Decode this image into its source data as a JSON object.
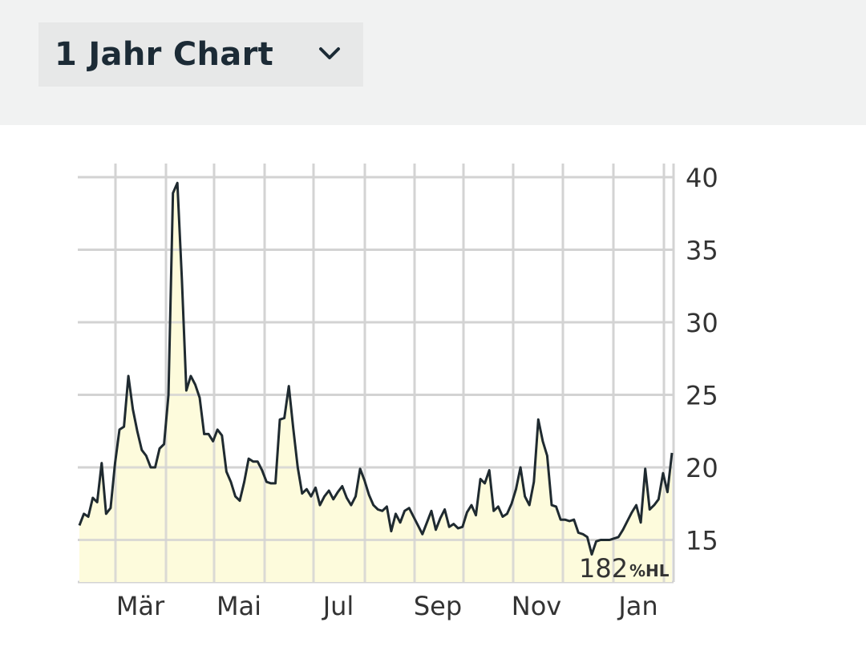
{
  "header": {
    "dropdown_label": "1 Jahr Chart",
    "dropdown_icon": "chevron-down-icon"
  },
  "colors": {
    "line": "#1f2a30",
    "fill": "#fdfbdc",
    "grid": "#d3d3d3",
    "header_bg": "#f1f2f2",
    "dropdown_bg": "#e7e8e8"
  },
  "chart_data": {
    "type": "area",
    "title": "",
    "xlabel": "",
    "ylabel": "",
    "ylim": [
      12,
      40
    ],
    "y_ticks": [
      15,
      20,
      25,
      30,
      35,
      40
    ],
    "x_tick_labels": [
      "Mär",
      "Mai",
      "Jul",
      "Sep",
      "Nov",
      "Jan"
    ],
    "grid": true,
    "y_axis_position": "right",
    "watermark": "182",
    "watermark_unit": "%HL",
    "series": [
      {
        "values": [
          16.0,
          16.8,
          16.6,
          17.9,
          17.6,
          20.3,
          16.8,
          17.2,
          20.3,
          22.6,
          22.8,
          26.3,
          24.0,
          22.5,
          21.2,
          20.8,
          20.0,
          20.0,
          21.3,
          21.6,
          25.0,
          38.9,
          39.6,
          33.0,
          25.3,
          26.3,
          25.7,
          24.8,
          22.3,
          22.3,
          21.8,
          22.6,
          22.2,
          19.7,
          19.0,
          18.0,
          17.7,
          19.0,
          20.6,
          20.4,
          20.4,
          19.8,
          19.0,
          18.9,
          18.9,
          23.3,
          23.4,
          25.6,
          22.7,
          20.0,
          18.2,
          18.5,
          18.0,
          18.6,
          17.4,
          18.0,
          18.4,
          17.8,
          18.3,
          18.7,
          17.9,
          17.4,
          18.0,
          19.9,
          19.1,
          18.1,
          17.4,
          17.1,
          17.0,
          17.3,
          15.6,
          16.8,
          16.2,
          17.0,
          17.2,
          16.6,
          16.0,
          15.4,
          16.2,
          17.0,
          15.7,
          16.5,
          17.1,
          15.9,
          16.1,
          15.8,
          15.9,
          16.9,
          17.4,
          16.7,
          19.2,
          18.9,
          19.8,
          17.0,
          17.3,
          16.6,
          16.8,
          17.5,
          18.5,
          20.0,
          18.0,
          17.4,
          19.0,
          23.3,
          21.8,
          20.8,
          17.4,
          17.3,
          16.4,
          16.4,
          16.3,
          16.4,
          15.5,
          15.4,
          15.2,
          14.0,
          14.9,
          15.0,
          15.0,
          15.0,
          15.1,
          15.2,
          15.7,
          16.3,
          16.9,
          17.4,
          16.2,
          19.9,
          17.1,
          17.4,
          17.8,
          19.6,
          18.3,
          21.0
        ]
      }
    ]
  }
}
